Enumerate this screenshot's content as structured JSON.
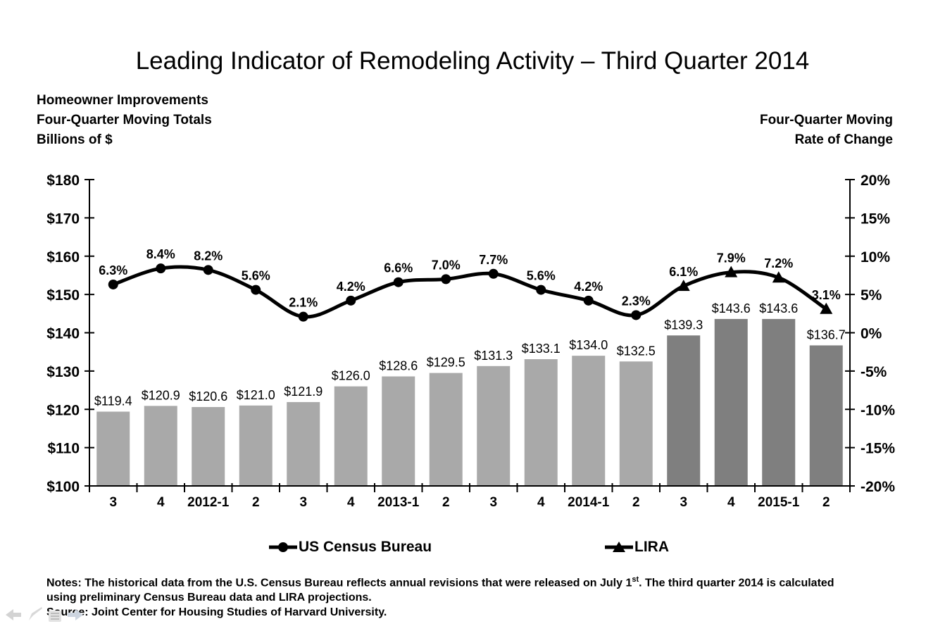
{
  "title": "Leading Indicator of Remodeling Activity – Third Quarter 2014",
  "left_header": {
    "lines": [
      "Homeowner Improvements",
      "Four-Quarter Moving Totals",
      "Billions of $"
    ]
  },
  "right_header": {
    "lines": [
      "Four-Quarter Moving",
      "Rate of Change"
    ]
  },
  "chart_data": {
    "type": "combo-bar-line",
    "categories": [
      "3",
      "4",
      "2012-1",
      "2",
      "3",
      "4",
      "2013-1",
      "2",
      "3",
      "4",
      "2014-1",
      "2",
      "3",
      "4",
      "2015-1",
      "2"
    ],
    "bars": {
      "values": [
        119.4,
        120.9,
        120.6,
        121.0,
        121.9,
        126.0,
        128.6,
        129.5,
        131.3,
        133.1,
        134.0,
        132.5,
        139.3,
        143.6,
        143.6,
        136.7
      ],
      "labels": [
        "$119.4",
        "$120.9",
        "$120.6",
        "$121.0",
        "$121.9",
        "$126.0",
        "$128.6",
        "$129.5",
        "$131.3",
        "$133.1",
        "$134.0",
        "$132.5",
        "$139.3",
        "$143.6",
        "$143.6",
        "$136.7"
      ],
      "projection_start_index": 12,
      "colors": {
        "historical": "#a9a9a9",
        "projection": "#7f7f7f"
      }
    },
    "series": [
      {
        "name": "US Census Bureau",
        "marker": "circle",
        "start_index": 0,
        "values": [
          6.3,
          8.4,
          8.2,
          5.6,
          2.1,
          4.2,
          6.6,
          7.0,
          7.7,
          5.6,
          4.2,
          2.3
        ],
        "labels": [
          "6.3%",
          "8.4%",
          "8.2%",
          "5.6%",
          "2.1%",
          "4.2%",
          "6.6%",
          "7.0%",
          "7.7%",
          "5.6%",
          "4.2%",
          "2.3%"
        ]
      },
      {
        "name": "LIRA",
        "marker": "triangle",
        "start_index": 12,
        "values": [
          6.1,
          7.9,
          7.2,
          3.1
        ],
        "labels": [
          "6.1%",
          "7.9%",
          "7.2%",
          "3.1%"
        ]
      }
    ],
    "line_color": "#000000",
    "left_axis": {
      "min": 100,
      "max": 180,
      "step": 10,
      "tick_labels": [
        "$100",
        "$110",
        "$120",
        "$130",
        "$140",
        "$150",
        "$160",
        "$170",
        "$180"
      ]
    },
    "right_axis": {
      "min": -20,
      "max": 20,
      "step": 5,
      "tick_labels": [
        "-20%",
        "-15%",
        "-10%",
        "-5%",
        "0%",
        "5%",
        "10%",
        "15%",
        "20%"
      ]
    },
    "grid": false,
    "legend_position": "bottom"
  },
  "legend": [
    {
      "label": "US Census Bureau",
      "marker": "circle"
    },
    {
      "label": "LIRA",
      "marker": "triangle"
    }
  ],
  "notes": {
    "line1_prefix": "Notes: The historical data from the U.S. Census Bureau reflects annual revisions that were released on July 1",
    "line1_sup": "st",
    "line1_suffix": ". The third quarter 2014 is calculated",
    "line2": "using preliminary Census Bureau data and LIRA projections.",
    "source": "Source: Joint Center for Housing Studies of Harvard University."
  },
  "nav_icons": [
    "back-arrow-icon",
    "pen-icon",
    "menu-icon",
    "forward-arrow-icon"
  ]
}
